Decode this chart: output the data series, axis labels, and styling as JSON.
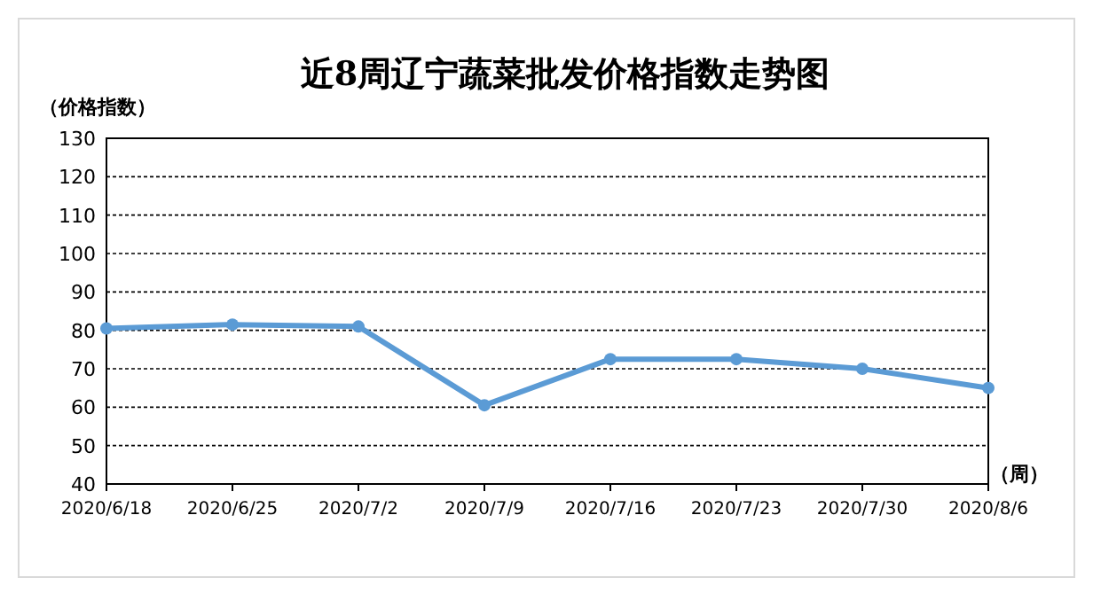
{
  "chart_data": {
    "type": "line",
    "title": "近8周辽宁蔬菜批发价格指数走势图",
    "ylabel": "（价格指数）",
    "xlabel": "（周）",
    "categories": [
      "2020/6/18",
      "2020/6/25",
      "2020/7/2",
      "2020/7/9",
      "2020/7/16",
      "2020/7/23",
      "2020/7/30",
      "2020/8/6"
    ],
    "series": [
      {
        "color": "#5b9bd5",
        "values": [
          80.5,
          81.5,
          81,
          60.5,
          72.5,
          72.5,
          70,
          65
        ]
      }
    ],
    "ylim": [
      40,
      130
    ],
    "yticks": [
      40,
      50,
      60,
      70,
      80,
      90,
      100,
      110,
      120,
      130
    ],
    "grid": "y",
    "marker": "circle",
    "line_style": "solid"
  }
}
